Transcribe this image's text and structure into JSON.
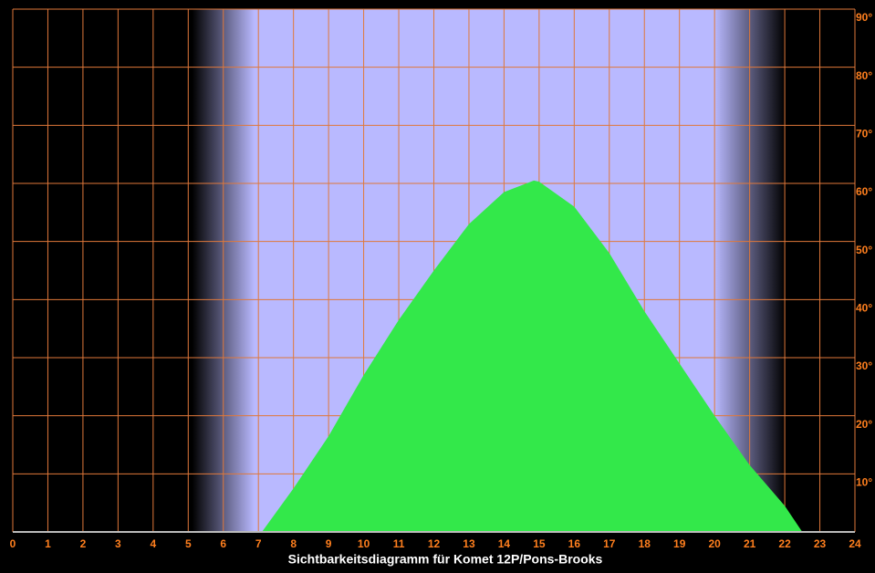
{
  "chart_data": {
    "type": "area",
    "title": "Sichtbarkeitsdiagramm für Komet 12P/Pons-Brooks",
    "x": [
      7.1,
      8,
      9,
      10,
      11,
      12,
      13,
      14,
      14.85,
      15,
      16,
      17,
      18,
      19,
      20,
      21,
      22,
      22.5
    ],
    "values": [
      0,
      7.5,
      16.5,
      27,
      36.5,
      45,
      53,
      58.5,
      60.5,
      60.3,
      56,
      48,
      38,
      29,
      20,
      11.5,
      4.5,
      0
    ],
    "color": "#33e84a",
    "xlim": [
      0,
      24
    ],
    "xticks": [
      0,
      1,
      2,
      3,
      4,
      5,
      6,
      7,
      8,
      9,
      10,
      11,
      12,
      13,
      14,
      15,
      16,
      17,
      18,
      19,
      20,
      21,
      22,
      23,
      24
    ],
    "ylim": [
      0,
      90
    ],
    "yticks": [
      {
        "value": 10,
        "label": "10°"
      },
      {
        "value": 20,
        "label": "20°"
      },
      {
        "value": 30,
        "label": "30°"
      },
      {
        "value": 40,
        "label": "40°"
      },
      {
        "value": 50,
        "label": "50°"
      },
      {
        "value": 60,
        "label": "60°"
      },
      {
        "value": 70,
        "label": "70°"
      },
      {
        "value": 80,
        "label": "80°"
      },
      {
        "value": 90,
        "label": "90°"
      }
    ],
    "grid": true
  }
}
